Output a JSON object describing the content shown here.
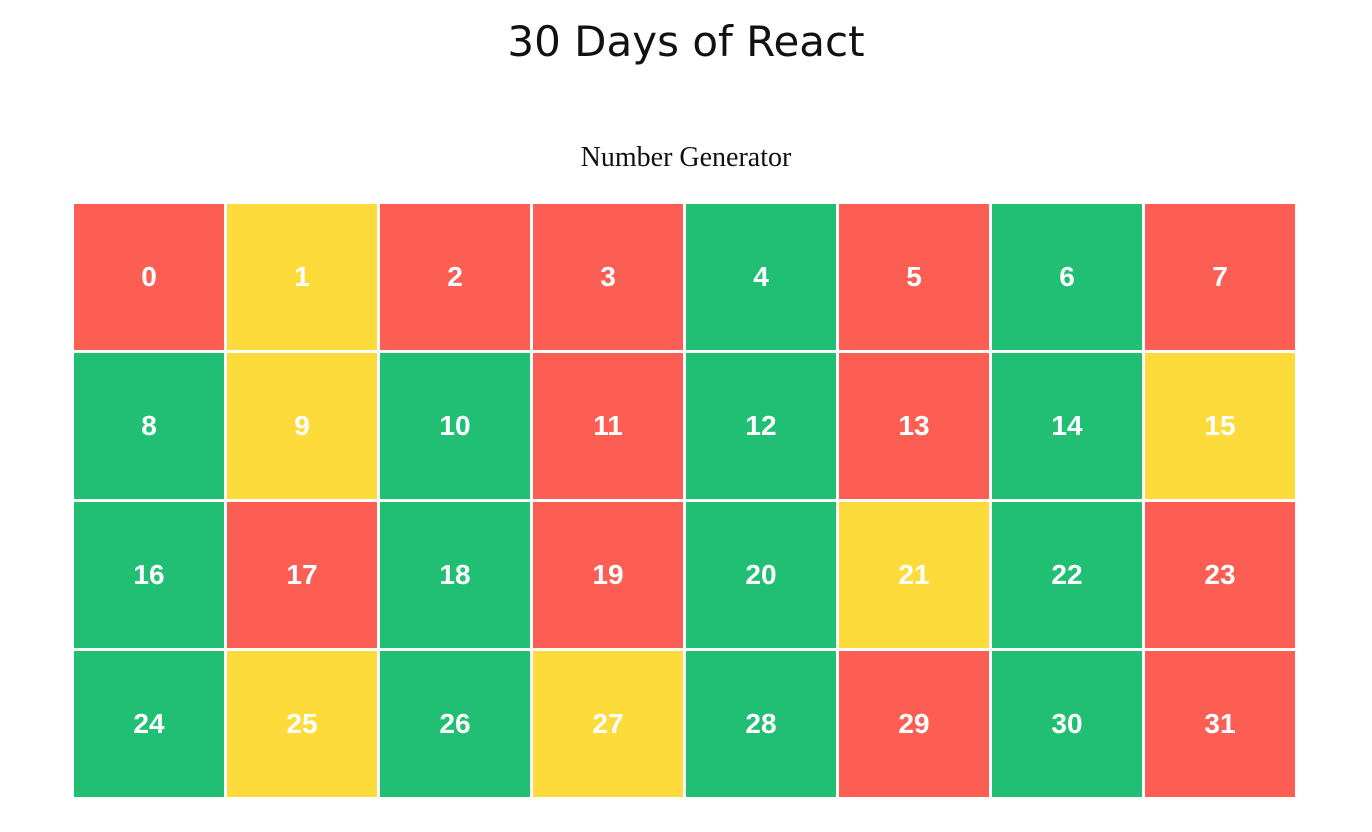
{
  "header": {
    "title": "30 Days of React"
  },
  "main": {
    "subtitle": "Number Generator",
    "colors": {
      "even": "#21bf73",
      "odd": "#fddb3a",
      "prime": "#fd5e53"
    },
    "numbers": [
      {
        "value": "0",
        "kind": "prime"
      },
      {
        "value": "1",
        "kind": "odd"
      },
      {
        "value": "2",
        "kind": "prime"
      },
      {
        "value": "3",
        "kind": "prime"
      },
      {
        "value": "4",
        "kind": "even"
      },
      {
        "value": "5",
        "kind": "prime"
      },
      {
        "value": "6",
        "kind": "even"
      },
      {
        "value": "7",
        "kind": "prime"
      },
      {
        "value": "8",
        "kind": "even"
      },
      {
        "value": "9",
        "kind": "odd"
      },
      {
        "value": "10",
        "kind": "even"
      },
      {
        "value": "11",
        "kind": "prime"
      },
      {
        "value": "12",
        "kind": "even"
      },
      {
        "value": "13",
        "kind": "prime"
      },
      {
        "value": "14",
        "kind": "even"
      },
      {
        "value": "15",
        "kind": "odd"
      },
      {
        "value": "16",
        "kind": "even"
      },
      {
        "value": "17",
        "kind": "prime"
      },
      {
        "value": "18",
        "kind": "even"
      },
      {
        "value": "19",
        "kind": "prime"
      },
      {
        "value": "20",
        "kind": "even"
      },
      {
        "value": "21",
        "kind": "odd"
      },
      {
        "value": "22",
        "kind": "even"
      },
      {
        "value": "23",
        "kind": "prime"
      },
      {
        "value": "24",
        "kind": "even"
      },
      {
        "value": "25",
        "kind": "odd"
      },
      {
        "value": "26",
        "kind": "even"
      },
      {
        "value": "27",
        "kind": "odd"
      },
      {
        "value": "28",
        "kind": "even"
      },
      {
        "value": "29",
        "kind": "prime"
      },
      {
        "value": "30",
        "kind": "even"
      },
      {
        "value": "31",
        "kind": "prime"
      }
    ]
  }
}
